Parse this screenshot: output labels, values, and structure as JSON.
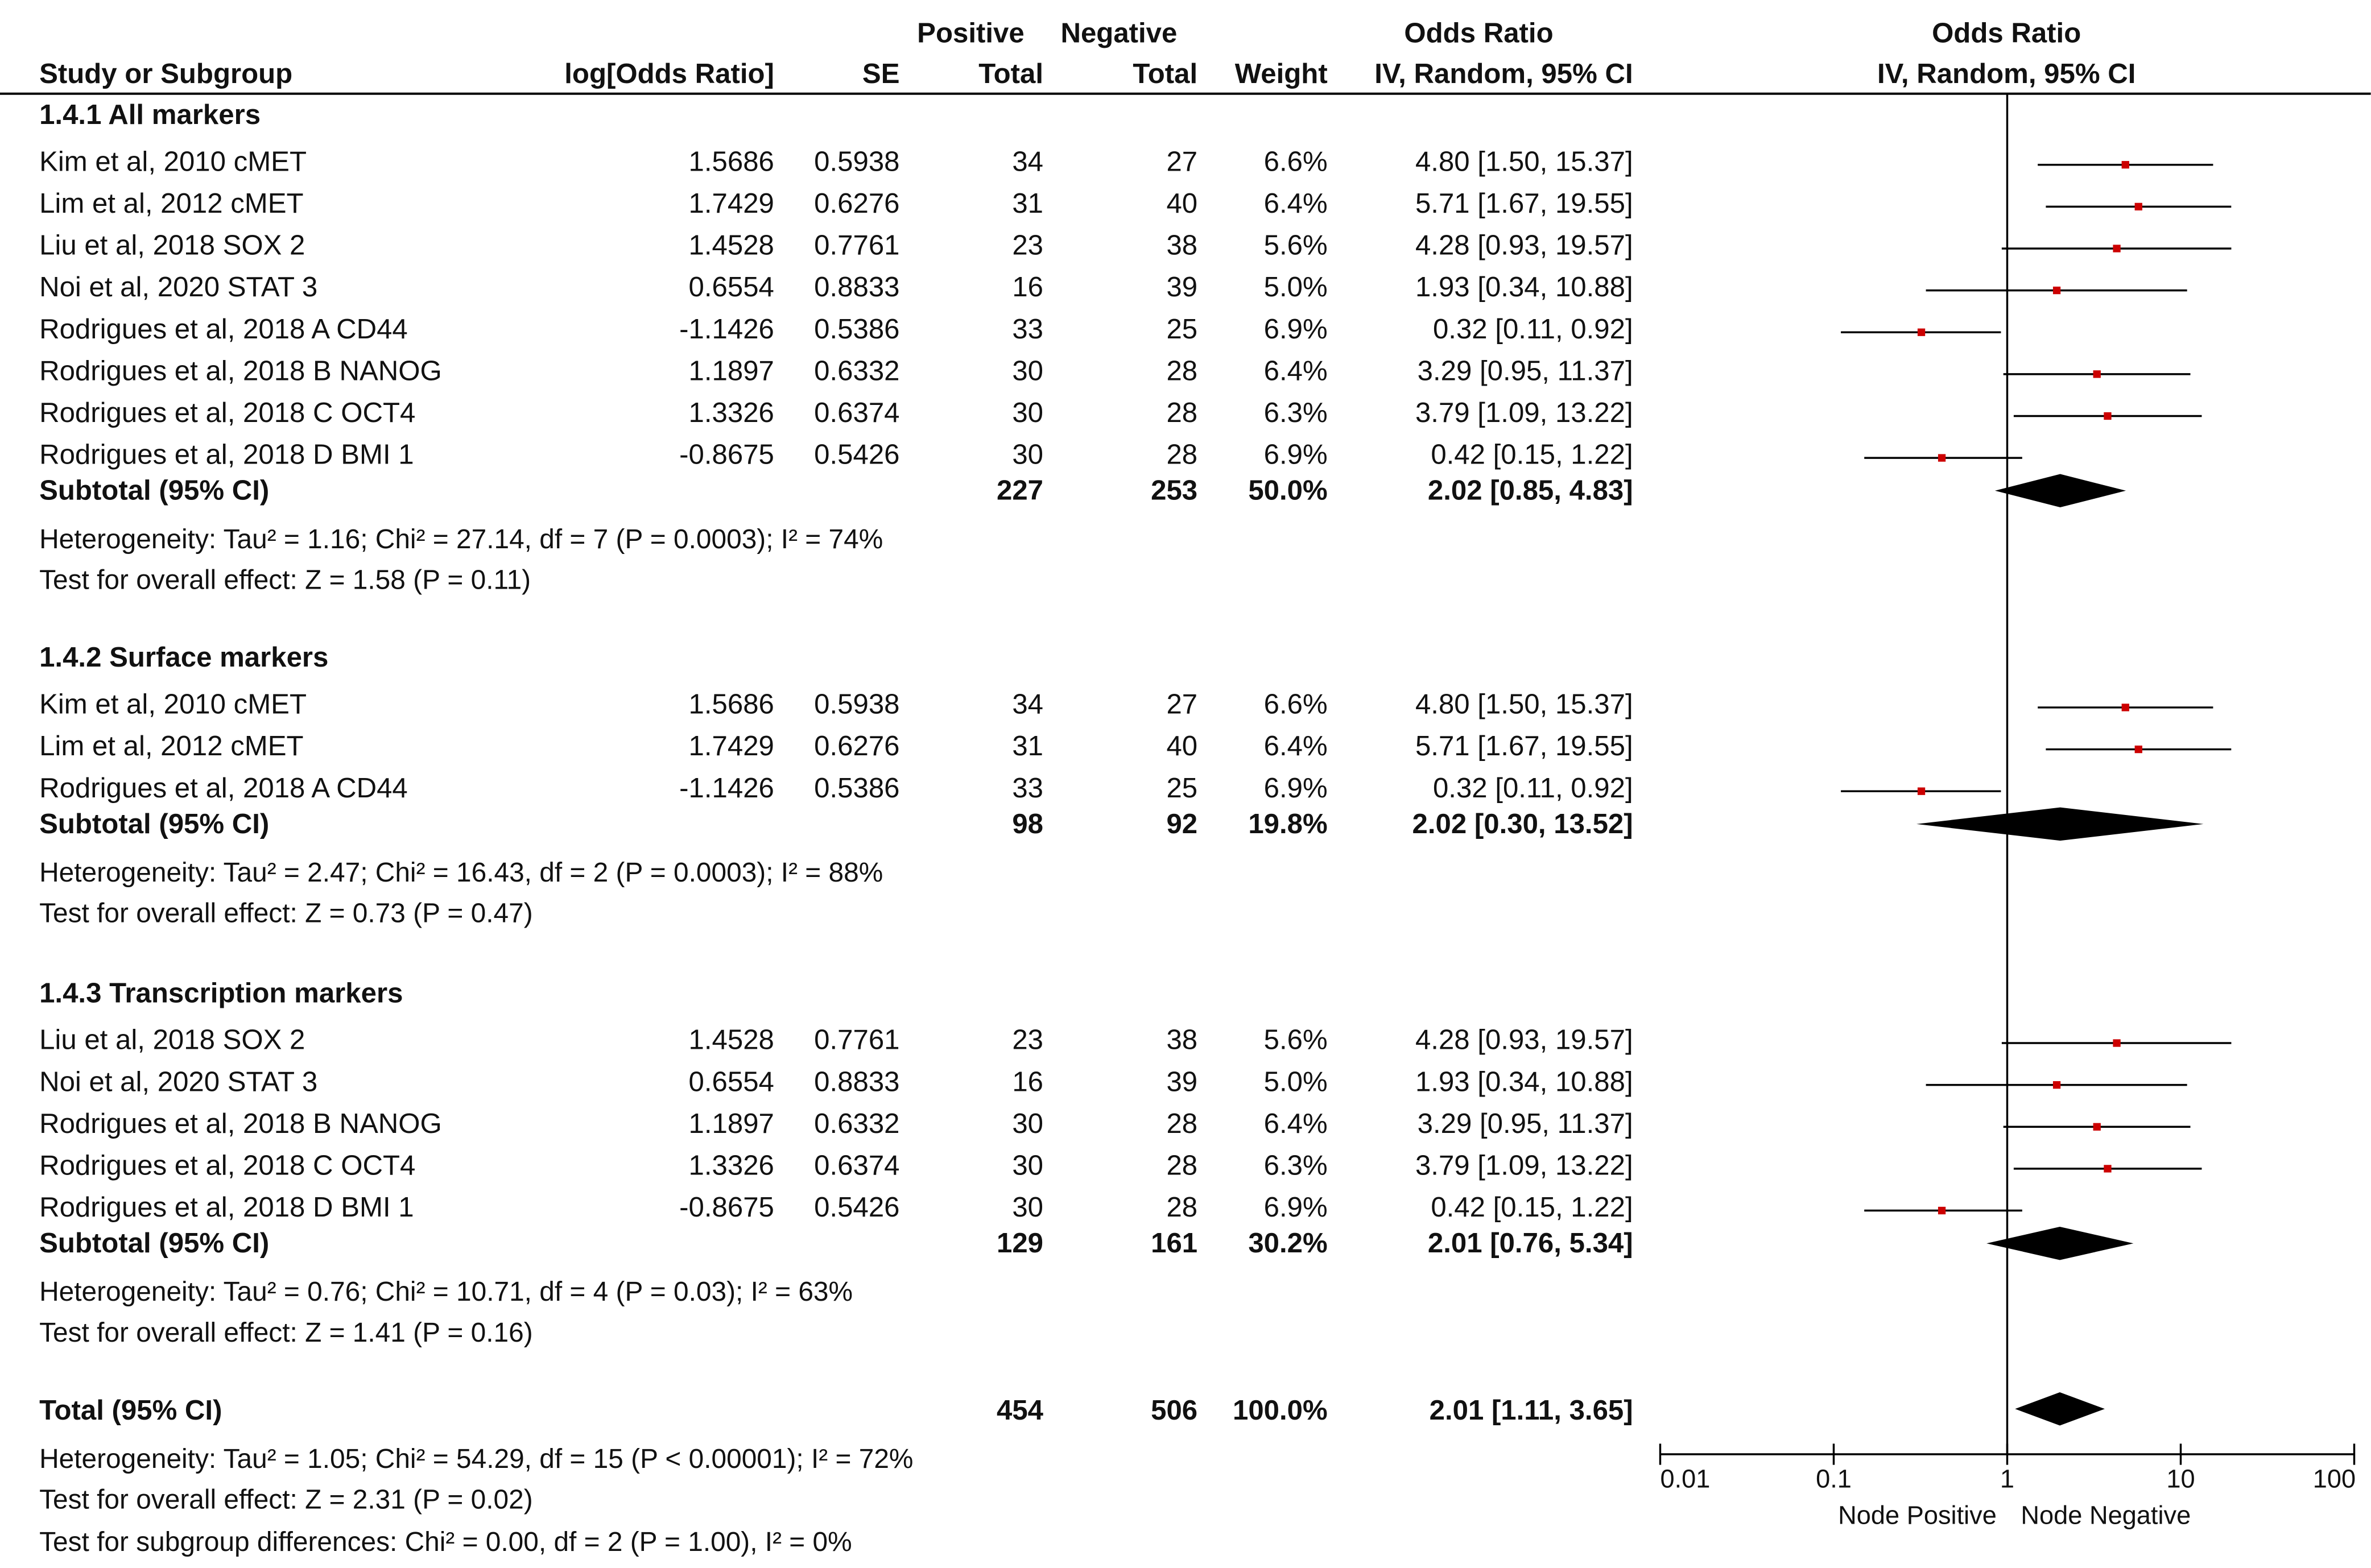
{
  "chart_data": {
    "type": "forest",
    "headers": {
      "study": "Study or Subgroup",
      "log_or": "log[Odds Ratio]",
      "se": "SE",
      "positive_top": "Positive",
      "positive_bottom": "Total",
      "negative_top": "Negative",
      "negative_bottom": "Total",
      "weight": "Weight",
      "or_top": "Odds Ratio",
      "or_bottom": "IV, Random, 95% CI",
      "plot_top": "Odds Ratio",
      "plot_bottom": "IV, Random, 95% CI"
    },
    "groups": [
      {
        "title": "1.4.1 All markers",
        "studies": [
          {
            "name": "Kim et al, 2010 cMET",
            "log_or": "1.5686",
            "se": "0.5938",
            "pos": "34",
            "neg": "27",
            "weight": "6.6%",
            "ci_text": "4.80 [1.50, 15.37]",
            "or": 4.8,
            "lo": 1.5,
            "hi": 15.37
          },
          {
            "name": "Lim et al, 2012 cMET",
            "log_or": "1.7429",
            "se": "0.6276",
            "pos": "31",
            "neg": "40",
            "weight": "6.4%",
            "ci_text": "5.71 [1.67, 19.55]",
            "or": 5.71,
            "lo": 1.67,
            "hi": 19.55
          },
          {
            "name": "Liu et al, 2018 SOX 2",
            "log_or": "1.4528",
            "se": "0.7761",
            "pos": "23",
            "neg": "38",
            "weight": "5.6%",
            "ci_text": "4.28 [0.93, 19.57]",
            "or": 4.28,
            "lo": 0.93,
            "hi": 19.57
          },
          {
            "name": "Noi et al, 2020 STAT 3",
            "log_or": "0.6554",
            "se": "0.8833",
            "pos": "16",
            "neg": "39",
            "weight": "5.0%",
            "ci_text": "1.93 [0.34, 10.88]",
            "or": 1.93,
            "lo": 0.34,
            "hi": 10.88
          },
          {
            "name": "Rodrigues et al, 2018 A  CD44",
            "log_or": "-1.1426",
            "se": "0.5386",
            "pos": "33",
            "neg": "25",
            "weight": "6.9%",
            "ci_text": "0.32 [0.11, 0.92]",
            "or": 0.32,
            "lo": 0.11,
            "hi": 0.92
          },
          {
            "name": "Rodrigues et al, 2018 B NANOG",
            "log_or": "1.1897",
            "se": "0.6332",
            "pos": "30",
            "neg": "28",
            "weight": "6.4%",
            "ci_text": "3.29 [0.95, 11.37]",
            "or": 3.29,
            "lo": 0.95,
            "hi": 11.37
          },
          {
            "name": "Rodrigues et al, 2018 C OCT4",
            "log_or": "1.3326",
            "se": "0.6374",
            "pos": "30",
            "neg": "28",
            "weight": "6.3%",
            "ci_text": "3.79 [1.09, 13.22]",
            "or": 3.79,
            "lo": 1.09,
            "hi": 13.22
          },
          {
            "name": "Rodrigues et al, 2018 D BMI 1",
            "log_or": "-0.8675",
            "se": "0.5426",
            "pos": "30",
            "neg": "28",
            "weight": "6.9%",
            "ci_text": "0.42 [0.15, 1.22]",
            "or": 0.42,
            "lo": 0.15,
            "hi": 1.22
          }
        ],
        "subtotal": {
          "label": "Subtotal (95% CI)",
          "pos": "227",
          "neg": "253",
          "weight": "50.0%",
          "ci_text": "2.02 [0.85, 4.83]",
          "or": 2.02,
          "lo": 0.85,
          "hi": 4.83
        },
        "heterogeneity": "Heterogeneity: Tau² = 1.16; Chi² = 27.14, df = 7 (P = 0.0003); I² = 74%",
        "overall": "Test for overall effect: Z = 1.58 (P = 0.11)"
      },
      {
        "title": "1.4.2 Surface markers",
        "studies": [
          {
            "name": "Kim et al, 2010 cMET",
            "log_or": "1.5686",
            "se": "0.5938",
            "pos": "34",
            "neg": "27",
            "weight": "6.6%",
            "ci_text": "4.80 [1.50, 15.37]",
            "or": 4.8,
            "lo": 1.5,
            "hi": 15.37
          },
          {
            "name": "Lim et al, 2012 cMET",
            "log_or": "1.7429",
            "se": "0.6276",
            "pos": "31",
            "neg": "40",
            "weight": "6.4%",
            "ci_text": "5.71 [1.67, 19.55]",
            "or": 5.71,
            "lo": 1.67,
            "hi": 19.55
          },
          {
            "name": "Rodrigues et al, 2018 A  CD44",
            "log_or": "-1.1426",
            "se": "0.5386",
            "pos": "33",
            "neg": "25",
            "weight": "6.9%",
            "ci_text": "0.32 [0.11, 0.92]",
            "or": 0.32,
            "lo": 0.11,
            "hi": 0.92
          }
        ],
        "subtotal": {
          "label": "Subtotal (95% CI)",
          "pos": "98",
          "neg": "92",
          "weight": "19.8%",
          "ci_text": "2.02 [0.30, 13.52]",
          "or": 2.02,
          "lo": 0.3,
          "hi": 13.52
        },
        "heterogeneity": "Heterogeneity: Tau² = 2.47; Chi² = 16.43, df = 2 (P = 0.0003); I² = 88%",
        "overall": "Test for overall effect: Z = 0.73 (P = 0.47)"
      },
      {
        "title": "1.4.3 Transcription markers",
        "studies": [
          {
            "name": "Liu et al, 2018 SOX 2",
            "log_or": "1.4528",
            "se": "0.7761",
            "pos": "23",
            "neg": "38",
            "weight": "5.6%",
            "ci_text": "4.28 [0.93, 19.57]",
            "or": 4.28,
            "lo": 0.93,
            "hi": 19.57
          },
          {
            "name": "Noi et al, 2020 STAT 3",
            "log_or": "0.6554",
            "se": "0.8833",
            "pos": "16",
            "neg": "39",
            "weight": "5.0%",
            "ci_text": "1.93 [0.34, 10.88]",
            "or": 1.93,
            "lo": 0.34,
            "hi": 10.88
          },
          {
            "name": "Rodrigues et al, 2018 B NANOG",
            "log_or": "1.1897",
            "se": "0.6332",
            "pos": "30",
            "neg": "28",
            "weight": "6.4%",
            "ci_text": "3.29 [0.95, 11.37]",
            "or": 3.29,
            "lo": 0.95,
            "hi": 11.37
          },
          {
            "name": "Rodrigues et al, 2018 C OCT4",
            "log_or": "1.3326",
            "se": "0.6374",
            "pos": "30",
            "neg": "28",
            "weight": "6.3%",
            "ci_text": "3.79 [1.09, 13.22]",
            "or": 3.79,
            "lo": 1.09,
            "hi": 13.22
          },
          {
            "name": "Rodrigues et al, 2018 D BMI 1",
            "log_or": "-0.8675",
            "se": "0.5426",
            "pos": "30",
            "neg": "28",
            "weight": "6.9%",
            "ci_text": "0.42 [0.15, 1.22]",
            "or": 0.42,
            "lo": 0.15,
            "hi": 1.22
          }
        ],
        "subtotal": {
          "label": "Subtotal (95% CI)",
          "pos": "129",
          "neg": "161",
          "weight": "30.2%",
          "ci_text": "2.01 [0.76, 5.34]",
          "or": 2.01,
          "lo": 0.76,
          "hi": 5.34
        },
        "heterogeneity": "Heterogeneity: Tau² = 0.76; Chi² = 10.71, df = 4 (P = 0.03); I² = 63%",
        "overall": "Test for overall effect: Z = 1.41 (P = 0.16)"
      }
    ],
    "total": {
      "label": "Total (95% CI)",
      "pos": "454",
      "neg": "506",
      "weight": "100.0%",
      "ci_text": "2.01 [1.11, 3.65]",
      "or": 2.01,
      "lo": 1.11,
      "hi": 3.65,
      "heterogeneity": "Heterogeneity: Tau² = 1.05; Chi² = 54.29, df = 15 (P < 0.00001); I² = 72%",
      "overall": "Test for overall effect: Z = 2.31 (P = 0.02)",
      "subgroup": "Test for subgroup differences: Chi² = 0.00, df = 2 (P = 1.00), I² = 0%"
    },
    "axis": {
      "scale": "log",
      "ticks": [
        0.01,
        0.1,
        1,
        10,
        100
      ],
      "tick_labels": [
        "0.01",
        "0.1",
        "1",
        "10",
        "100"
      ],
      "xlim": [
        0.01,
        100
      ],
      "reference": 1,
      "left_label": "Node Positive",
      "right_label": "Node Negative"
    },
    "colors": {
      "point": "#cc0000",
      "line": "#000000",
      "diamond": "#000000",
      "text": "#111111"
    }
  }
}
